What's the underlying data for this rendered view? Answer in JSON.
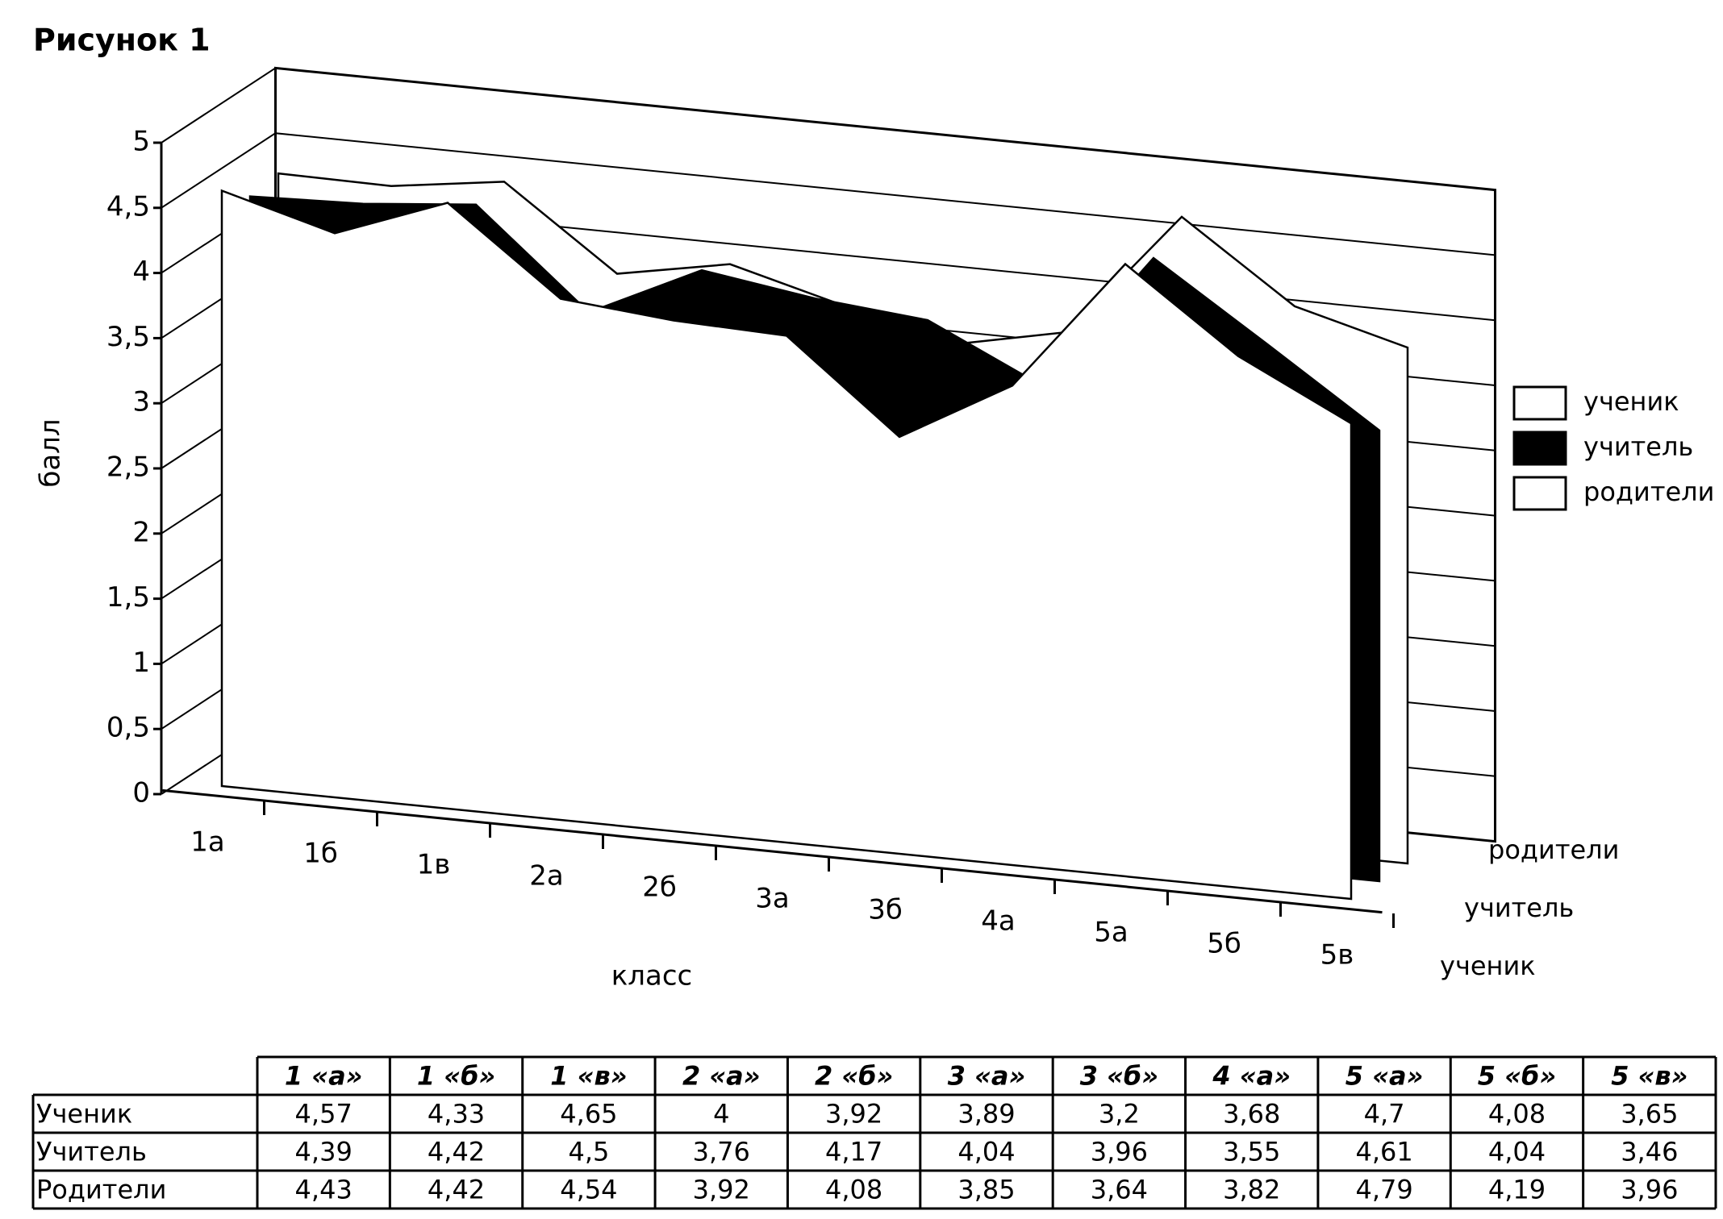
{
  "title": "Рисунок 1",
  "chart_data": {
    "type": "area3d",
    "ylabel": "балл",
    "xlabel": "класс",
    "categories": [
      "1а",
      "1б",
      "1в",
      "2а",
      "2б",
      "3а",
      "3б",
      "4а",
      "5а",
      "5б",
      "5в"
    ],
    "ylim": [
      0,
      5
    ],
    "yticks": [
      0,
      {
        "value": 0.5,
        "label": "0,5"
      },
      1,
      {
        "value": 1.5,
        "label": "1,5"
      },
      2,
      {
        "value": 2.5,
        "label": "2,5"
      },
      3,
      {
        "value": 3.5,
        "label": "3,5"
      },
      4,
      {
        "value": 4.5,
        "label": "4,5"
      },
      5
    ],
    "series": [
      {
        "name": "ученик",
        "color": "#ffffff",
        "values": [
          4.57,
          4.33,
          4.65,
          4,
          3.92,
          3.89,
          3.2,
          3.68,
          4.7,
          4.08,
          3.65
        ],
        "value_labels": [
          "4,57",
          "4,33",
          "4,65",
          "4",
          "3,92",
          "3,89",
          "3,2",
          "3,68",
          "4,7",
          "4,08",
          "3,65"
        ]
      },
      {
        "name": "учитель",
        "color": "#000000",
        "values": [
          4.39,
          4.42,
          4.5,
          3.76,
          4.17,
          4.04,
          3.96,
          3.55,
          4.61,
          4.04,
          3.46
        ],
        "value_labels": [
          "4,39",
          "4,42",
          "4,5",
          "3,76",
          "4,17",
          "4,04",
          "3,96",
          "3,55",
          "4,61",
          "4,04",
          "3,46"
        ]
      },
      {
        "name": "родители",
        "color": "#ffffff",
        "values": [
          4.43,
          4.42,
          4.54,
          3.92,
          4.08,
          3.85,
          3.64,
          3.82,
          4.79,
          4.19,
          3.96
        ],
        "value_labels": [
          "4,43",
          "4,42",
          "4,54",
          "3,92",
          "4,08",
          "3,85",
          "3,64",
          "3,82",
          "4,79",
          "4,19",
          "3,96"
        ]
      }
    ]
  },
  "table": {
    "columns": [
      "1 «а»",
      "1 «б»",
      "1 «в»",
      "2 «а»",
      "2 «б»",
      "3 «а»",
      "3 «б»",
      "4 «а»",
      "5 «а»",
      "5 «б»",
      "5 «в»"
    ],
    "row_labels": [
      "Ученик",
      "Учитель",
      "Родители"
    ]
  }
}
